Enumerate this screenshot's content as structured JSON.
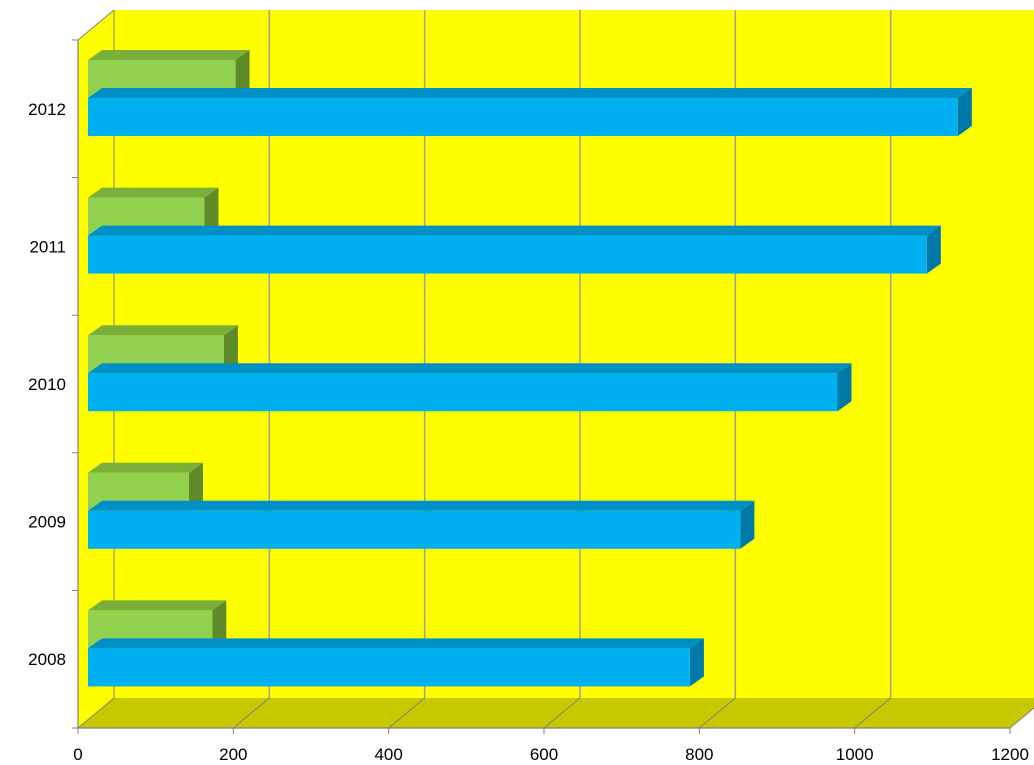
{
  "chart_data": {
    "type": "bar",
    "orientation": "horizontal",
    "three_d": true,
    "categories": [
      "2008",
      "2009",
      "2010",
      "2011",
      "2012"
    ],
    "series": [
      {
        "values": [
          160,
          130,
          175,
          150,
          190
        ]
      },
      {
        "values": [
          775,
          840,
          965,
          1080,
          1120
        ]
      }
    ],
    "xlim": [
      0,
      1200
    ],
    "x_ticks": [
      "0",
      "200",
      "400",
      "600",
      "800",
      "1000",
      "1200"
    ],
    "grid": true,
    "legend": "none",
    "colors": {
      "wall": "#ffff00",
      "floor": "#c8c800",
      "series_green_front": "#92d050",
      "series_green_top": "#7ab03a",
      "series_green_side": "#5f8a2a",
      "series_blue_front": "#00b0f0",
      "series_blue_top": "#0090c8",
      "series_blue_side": "#0078a8",
      "gridline": "#a0a0a0",
      "axis": "#808080"
    }
  }
}
